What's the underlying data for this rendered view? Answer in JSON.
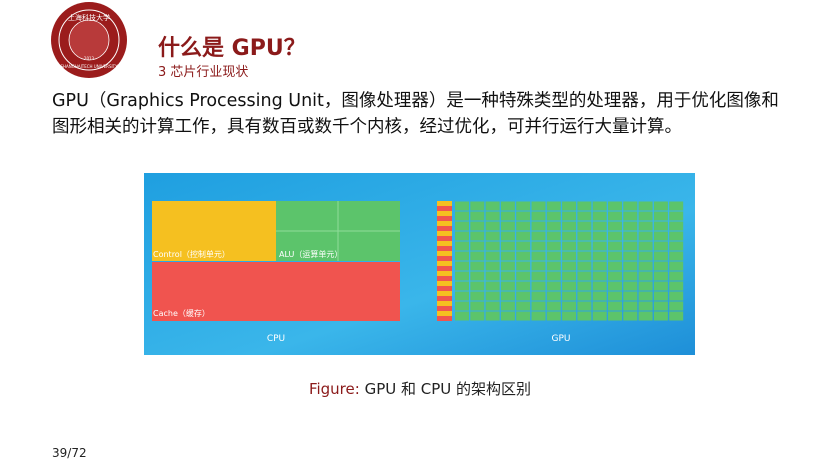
{
  "logo": {
    "name_cn": "上海科技大学",
    "name_en": "SHANGHAITECH UNIVERSITY",
    "year": "2013"
  },
  "header": {
    "title": "什么是 GPU？",
    "subtitle": "3 芯片行业现状"
  },
  "body": "GPU（Graphics Processing Unit，图像处理器）是一种特殊类型的处理器，用于优化图像和图形相关的计算工作，具有数百或数千个内核，经过优化，可并行运行大量计算。",
  "figure": {
    "control": "Control（控制单元）",
    "alu": "ALU（运算单元）",
    "cache": "Cache（缓存）",
    "cpu": "CPU",
    "gpu": "GPU",
    "caption_prefix": "Figure:",
    "caption": "GPU 和 CPU 的架构区别"
  },
  "page_number": "39/72"
}
